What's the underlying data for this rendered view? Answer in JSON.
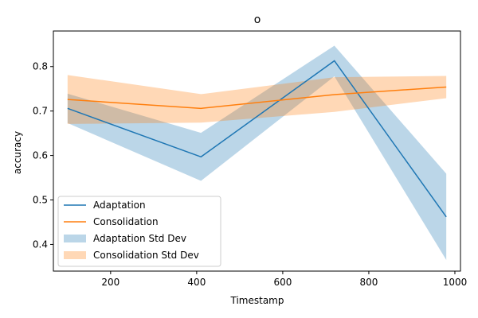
{
  "chart_data": {
    "type": "line",
    "title": "o",
    "xlabel": "Timestamp",
    "ylabel": "accuracy",
    "xlim": [
      67,
      1013
    ],
    "ylim": [
      0.34,
      0.88
    ],
    "xticks": [
      200,
      400,
      600,
      800,
      1000
    ],
    "yticks": [
      0.4,
      0.5,
      0.6,
      0.7,
      0.8
    ],
    "grid": false,
    "legend_position": "lower-left",
    "x": [
      100,
      410,
      720,
      980
    ],
    "series": [
      {
        "name": "Adaptation",
        "color": "#1f77b4",
        "values": [
          0.706,
          0.597,
          0.813,
          0.462
        ],
        "std_band": {
          "name": "Adaptation Std Dev",
          "lower": [
            0.673,
            0.543,
            0.778,
            0.365
          ],
          "upper": [
            0.739,
            0.651,
            0.847,
            0.559
          ]
        }
      },
      {
        "name": "Consolidation",
        "color": "#ff7f0e",
        "values": [
          0.726,
          0.706,
          0.737,
          0.754
        ],
        "std_band": {
          "name": "Consolidation Std Dev",
          "lower": [
            0.671,
            0.674,
            0.698,
            0.729
          ],
          "upper": [
            0.781,
            0.738,
            0.776,
            0.779
          ]
        }
      }
    ]
  }
}
